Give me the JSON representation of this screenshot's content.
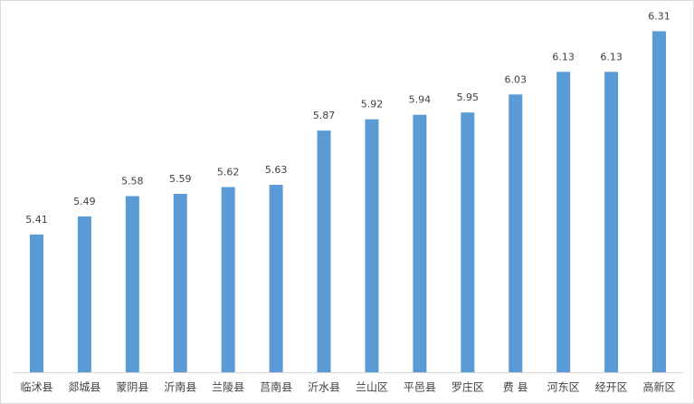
{
  "chart_data": {
    "type": "bar",
    "categories": [
      "临沭县",
      "郯城县",
      "蒙阴县",
      "沂南县",
      "兰陵县",
      "莒南县",
      "沂水县",
      "兰山区",
      "平邑县",
      "罗庄区",
      "费 县",
      "河东区",
      "经开区",
      "高新区"
    ],
    "values": [
      5.41,
      5.49,
      5.58,
      5.59,
      5.62,
      5.63,
      5.87,
      5.92,
      5.94,
      5.95,
      6.03,
      6.13,
      6.13,
      6.31
    ],
    "color": "#5b9bd5",
    "ylim": [
      4.8,
      6.4
    ]
  }
}
